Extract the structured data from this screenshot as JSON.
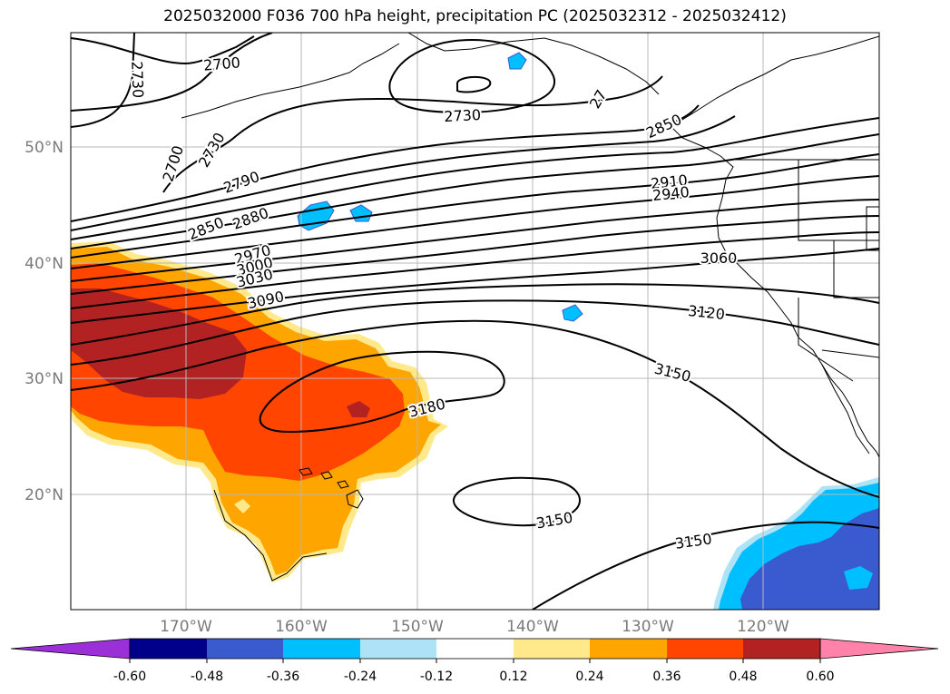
{
  "title": "2025032000 F036 700 hPa height, precipitation PC (2025032312 - 2025032412)",
  "lat_labels": [
    "50°N",
    "40°N",
    "30°N",
    "20°N"
  ],
  "lon_labels": [
    "170°W",
    "160°W",
    "150°W",
    "140°W",
    "130°W",
    "120°W"
  ],
  "contour_labels": [
    "2700",
    "2730",
    "2700",
    "2730",
    "2730",
    "2790",
    "2850",
    "2880",
    "2970",
    "3000",
    "3030",
    "3090",
    "2910",
    "2940",
    "3060",
    "3120",
    "3150",
    "3180",
    "3150",
    "3150",
    "27",
    "2850"
  ],
  "colorbar": {
    "tick_labels": [
      "-0.60",
      "-0.48",
      "-0.36",
      "-0.24",
      "-0.12",
      "0.12",
      "0.24",
      "0.36",
      "0.48",
      "0.60"
    ],
    "colors": [
      "#9b30d9",
      "#00008b",
      "#3a5bcf",
      "#00bfff",
      "#ade2f7",
      "#ffffff",
      "#ffe98a",
      "#ffa500",
      "#ff4500",
      "#b22222",
      "#ff82ab"
    ]
  },
  "map_colors": {
    "dark_red": "#b22222",
    "red_orange": "#ff4500",
    "orange": "#ffa500",
    "light_yellow": "#ffe98a",
    "deep_sky_blue": "#00bfff",
    "royal_blue": "#3a5bcf",
    "light_blue": "#ade2f7"
  }
}
